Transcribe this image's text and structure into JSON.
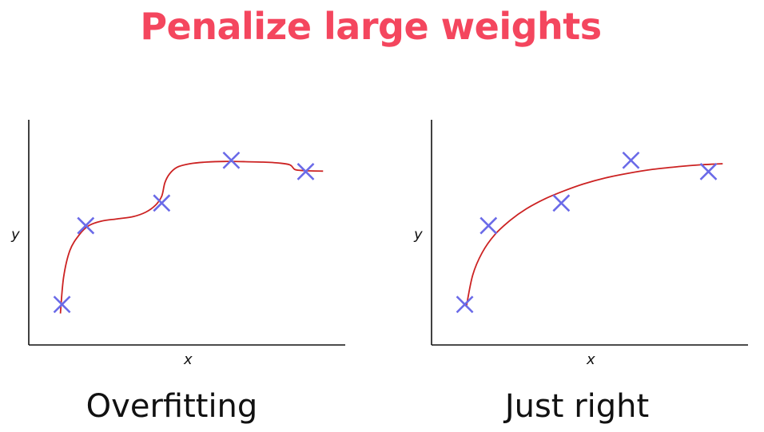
{
  "title": "Penalize large weights",
  "colors": {
    "title": "#f4465e",
    "points": "#6a6ae8",
    "curve": "#cc2222",
    "axis": "#111111"
  },
  "chart_data": [
    {
      "type": "scatter",
      "caption": "Overfitting",
      "xlabel": "x",
      "ylabel": "y",
      "xlim": [
        0,
        10
      ],
      "ylim": [
        0,
        10
      ],
      "grid": false,
      "points": [
        {
          "x": 1.05,
          "y": 1.8
        },
        {
          "x": 1.8,
          "y": 5.3
        },
        {
          "x": 4.2,
          "y": 6.3
        },
        {
          "x": 6.4,
          "y": 8.2
        },
        {
          "x": 8.75,
          "y": 7.7
        }
      ],
      "curve": {
        "style": "overfit",
        "x": [
          1.0,
          1.1,
          1.3,
          1.6,
          1.9,
          2.3,
          2.8,
          3.3,
          3.7,
          4.0,
          4.2,
          4.3,
          4.45,
          4.7,
          5.1,
          5.6,
          6.2,
          6.8,
          7.4,
          7.9,
          8.25,
          8.4,
          8.6,
          8.9,
          9.3
        ],
        "y": [
          1.4,
          3.0,
          4.2,
          4.9,
          5.3,
          5.5,
          5.6,
          5.7,
          5.9,
          6.2,
          6.6,
          7.2,
          7.6,
          7.9,
          8.05,
          8.12,
          8.15,
          8.14,
          8.12,
          8.08,
          8.0,
          7.8,
          7.75,
          7.73,
          7.72
        ]
      }
    },
    {
      "type": "scatter",
      "caption": "Just right",
      "xlabel": "x",
      "ylabel": "y",
      "xlim": [
        0,
        10
      ],
      "ylim": [
        0,
        10
      ],
      "grid": false,
      "points": [
        {
          "x": 1.05,
          "y": 1.8
        },
        {
          "x": 1.8,
          "y": 5.3
        },
        {
          "x": 4.1,
          "y": 6.3
        },
        {
          "x": 6.3,
          "y": 8.2
        },
        {
          "x": 8.75,
          "y": 7.7
        }
      ],
      "curve": {
        "style": "smooth",
        "x": [
          1.1,
          1.3,
          1.6,
          2.0,
          2.5,
          3.0,
          3.6,
          4.2,
          4.8,
          5.5,
          6.2,
          7.0,
          7.8,
          8.5,
          9.2
        ],
        "y": [
          1.7,
          3.1,
          4.1,
          4.9,
          5.55,
          6.05,
          6.5,
          6.85,
          7.15,
          7.42,
          7.62,
          7.8,
          7.92,
          8.0,
          8.05
        ]
      }
    }
  ]
}
